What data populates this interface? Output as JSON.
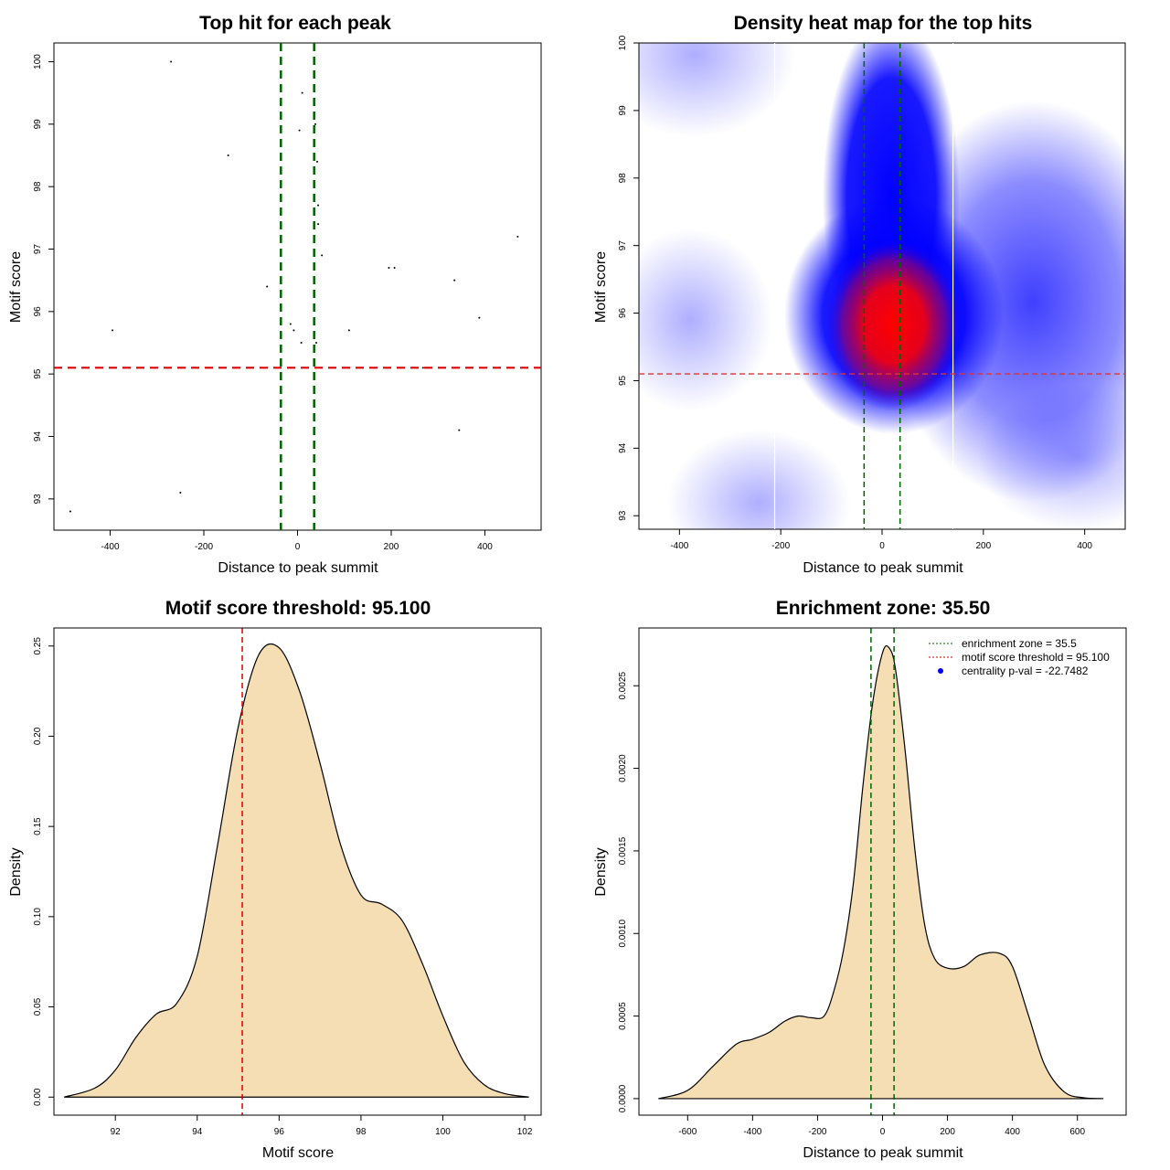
{
  "chart_data": [
    {
      "id": "p1",
      "type": "scatter",
      "title": "Top hit for each peak",
      "xlabel": "Distance to peak summit",
      "ylabel": "Motif score",
      "xlim": [
        -520,
        520
      ],
      "ylim": [
        92.5,
        100.3
      ],
      "xticks": [
        "-400",
        "-200",
        "0",
        "200",
        "400"
      ],
      "xtick_values": [
        -400,
        -200,
        0,
        200,
        400
      ],
      "yticks": [
        "93",
        "94",
        "95",
        "96",
        "97",
        "98",
        "99",
        "100"
      ],
      "ytick_values": [
        93,
        94,
        95,
        96,
        97,
        98,
        99,
        100
      ],
      "points": [
        [
          -485,
          92.8
        ],
        [
          -270,
          100
        ],
        [
          -250,
          93.1
        ],
        [
          -395,
          95.7
        ],
        [
          -148,
          98.5
        ],
        [
          -65,
          96.4
        ],
        [
          -15,
          95.8
        ],
        [
          -8,
          95.7
        ],
        [
          4,
          98.9
        ],
        [
          10,
          99.5
        ],
        [
          8,
          95.5
        ],
        [
          38,
          99.0
        ],
        [
          40,
          95.5
        ],
        [
          42,
          98.4
        ],
        [
          44,
          97.7
        ],
        [
          44,
          97.4
        ],
        [
          52,
          96.9
        ],
        [
          110,
          95.7
        ],
        [
          195,
          96.7
        ],
        [
          207,
          96.7
        ],
        [
          268,
          95.1
        ],
        [
          335,
          96.5
        ],
        [
          345,
          94.1
        ],
        [
          388,
          95.9
        ],
        [
          470,
          97.2
        ]
      ],
      "vlines": [
        -35.5,
        35.5
      ],
      "hline": 95.1,
      "colors": {
        "vline": "#006400",
        "hline": "#dd0000",
        "points": "#000000"
      }
    },
    {
      "id": "p2",
      "type": "heatmap",
      "title": "Density heat map for the top hits",
      "xlabel": "Distance to peak summit",
      "ylabel": "Motif score",
      "xlim": [
        -480,
        480
      ],
      "ylim": [
        92.8,
        100
      ],
      "xticks": [
        "-400",
        "-200",
        "0",
        "200",
        "400"
      ],
      "xtick_values": [
        -400,
        -200,
        0,
        200,
        400
      ],
      "yticks": [
        "93",
        "94",
        "95",
        "96",
        "97",
        "98",
        "99",
        "100"
      ],
      "ytick_values": [
        93,
        94,
        95,
        96,
        97,
        98,
        99,
        100
      ],
      "vlines": [
        -35.5,
        35.5
      ],
      "white_lines": [
        -212,
        140
      ],
      "hline": 95.1,
      "colors": {
        "low": "#ffffff",
        "mid": "#0000ff",
        "high": "#ff0000",
        "vline": "#006400",
        "hline": "#dd3333"
      }
    },
    {
      "id": "p3",
      "type": "area",
      "title": "Motif score threshold: 95.100",
      "xlabel": "Motif score",
      "ylabel": "Density",
      "xlim": [
        90.5,
        102.4
      ],
      "ylim": [
        -0.01,
        0.26
      ],
      "xticks": [
        "92",
        "94",
        "96",
        "98",
        "100",
        "102"
      ],
      "xtick_values": [
        92,
        94,
        96,
        98,
        100,
        102
      ],
      "yticks": [
        "0.00",
        "0.05",
        "0.10",
        "0.15",
        "0.20",
        "0.25"
      ],
      "ytick_values": [
        0,
        0.05,
        0.1,
        0.15,
        0.2,
        0.25
      ],
      "x": [
        90.75,
        91.5,
        92.0,
        92.5,
        93.0,
        93.5,
        94.0,
        94.5,
        95.0,
        95.5,
        96.0,
        96.5,
        97.0,
        97.5,
        98.0,
        98.5,
        99.0,
        99.5,
        100.0,
        100.5,
        101.0,
        101.5,
        102.1
      ],
      "y": [
        0.0,
        0.005,
        0.015,
        0.033,
        0.046,
        0.052,
        0.078,
        0.14,
        0.205,
        0.245,
        0.249,
        0.225,
        0.185,
        0.14,
        0.112,
        0.107,
        0.098,
        0.074,
        0.045,
        0.02,
        0.007,
        0.002,
        0.0
      ],
      "vline": 95.1,
      "colors": {
        "fill": "#f5deb3",
        "line": "#000000",
        "vline": "#dd0000"
      }
    },
    {
      "id": "p4",
      "type": "area",
      "title": "Enrichment zone: 35.50",
      "xlabel": "Distance to peak summit",
      "ylabel": "Density",
      "xlim": [
        -750,
        750
      ],
      "ylim": [
        -0.0001,
        0.00285
      ],
      "xticks": [
        "-600",
        "-400",
        "-200",
        "0",
        "200",
        "400",
        "600"
      ],
      "xtick_values": [
        -600,
        -400,
        -200,
        0,
        200,
        400,
        600
      ],
      "yticks": [
        "0.0000",
        "0.0005",
        "0.0010",
        "0.0015",
        "0.0020",
        "0.0025"
      ],
      "ytick_values": [
        0,
        0.0005,
        0.001,
        0.0015,
        0.002,
        0.0025
      ],
      "x": [
        -690,
        -600,
        -520,
        -450,
        -400,
        -350,
        -300,
        -260,
        -220,
        -180,
        -150,
        -120,
        -90,
        -60,
        -30,
        0,
        20,
        40,
        70,
        100,
        130,
        160,
        200,
        250,
        300,
        360,
        400,
        450,
        500,
        560,
        620,
        680
      ],
      "y": [
        0.0,
        5e-05,
        0.0002,
        0.00033,
        0.00036,
        0.0004,
        0.00047,
        0.0005,
        0.00049,
        0.0005,
        0.00065,
        0.0009,
        0.0013,
        0.0019,
        0.0024,
        0.0027,
        0.00273,
        0.0026,
        0.0021,
        0.0015,
        0.00105,
        0.00085,
        0.00079,
        0.0008,
        0.00087,
        0.00088,
        0.0008,
        0.0005,
        0.0002,
        4e-05,
        5e-06,
        0.0
      ],
      "vlines": [
        -35.5,
        35.5
      ],
      "legend": [
        {
          "label": "enrichment zone = 35.5",
          "color": "#006400",
          "kind": "dotted"
        },
        {
          "label": "motif score threshold = 95.100",
          "color": "#dd0000",
          "kind": "dotted"
        },
        {
          "label": "centrality p-val = -22.7482",
          "color": "#0000ff",
          "kind": "dot"
        }
      ],
      "legend_position": "top-right",
      "colors": {
        "fill": "#f5deb3",
        "line": "#000000",
        "vline": "#006400"
      }
    }
  ]
}
